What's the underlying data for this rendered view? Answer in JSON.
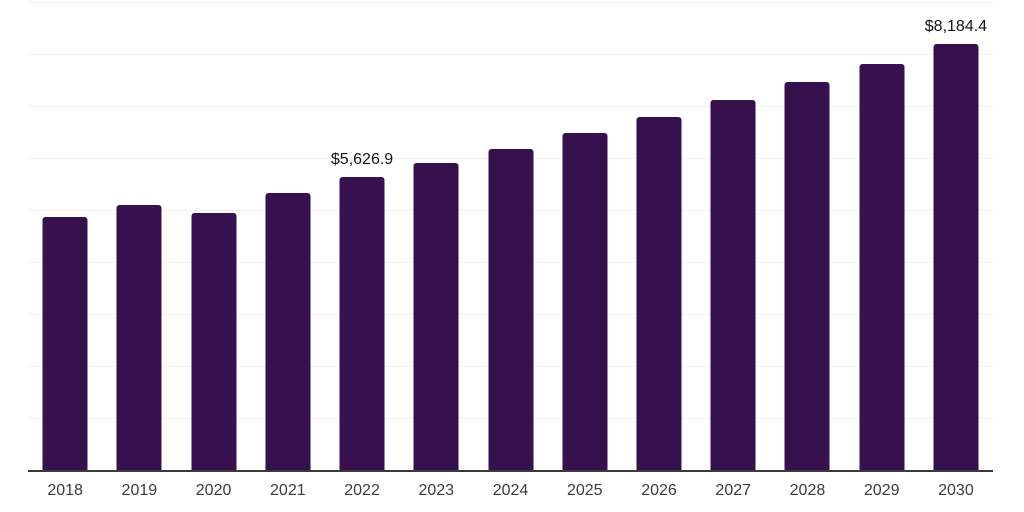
{
  "chart_data": {
    "type": "bar",
    "title": "",
    "xlabel": "",
    "ylabel": "",
    "categories": [
      "2018",
      "2019",
      "2020",
      "2021",
      "2022",
      "2023",
      "2024",
      "2025",
      "2026",
      "2027",
      "2028",
      "2029",
      "2030"
    ],
    "values": [
      4860,
      5095,
      4940,
      5320,
      5626.9,
      5896.7,
      6179.4,
      6475.7,
      6786.2,
      7111.6,
      7452.6,
      7809.9,
      8184.4
    ],
    "data_labels": [
      {
        "category": "2022",
        "text": "$5,626.9"
      },
      {
        "category": "2030",
        "text": "$8,184.4"
      }
    ],
    "ylim": [
      0,
      9000
    ],
    "gridline_step": 1000,
    "grid": "horizontal-only",
    "legend": "none",
    "colors": {
      "bar": "#36114E",
      "axis_line": "#3a3a3a",
      "gridline": "#f0f0f0",
      "background": "#ffffff",
      "tick_label": "#3b3b3b",
      "data_label": "#141414"
    }
  }
}
